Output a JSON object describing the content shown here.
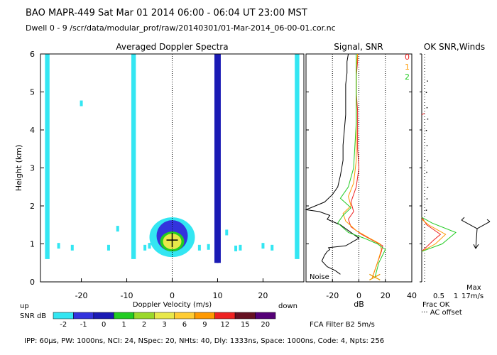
{
  "header": {
    "title": "BAO  MAPR-449  Sat Mar 01 2014 06:00 - 06:04 UT 23:00 MST",
    "dwell": "Dwell  0 -  9   /scr/data/modular_prof/raw/20140301/01-Mar-2014_06-00-01.cor.nc"
  },
  "footer": "IPP:  60µs,  PW: 1000ns,  NCI:  24,  NSpec: 20, NHts: 40,  Dly: 1333ns,  Space: 1000ns,  Code: 4,  Npts: 256",
  "colors": {
    "cyan": "#33e6f2",
    "blue": "#3333dd",
    "green": "#22cc22",
    "red": "#ee2222",
    "orange": "#ff9900",
    "yellow": "#e8e84a"
  },
  "chart_data": [
    {
      "type": "heatmap",
      "title": "Averaged Doppler Spectra",
      "xlabel": "Doppler Velocity (m/s)",
      "ylabel": "Height (km)",
      "xlim": [
        -29,
        29
      ],
      "ylim": [
        0,
        6
      ],
      "x_ticks": [
        -20,
        -10,
        0,
        10,
        20
      ],
      "y_ticks": [
        0,
        1,
        2,
        3,
        4,
        5,
        6
      ],
      "left_label": "up",
      "right_label": "down",
      "colorbar": {
        "label": "SNR dB",
        "levels": [
          "-2",
          "-1",
          "0",
          "1",
          "2",
          "3",
          "6",
          "9",
          "12",
          "15",
          "20"
        ],
        "colors": [
          "#33e6f2",
          "#3333dd",
          "#1a1ab4",
          "#22cc22",
          "#9ad82a",
          "#e8e84a",
          "#ffcc33",
          "#ff9900",
          "#ee2222",
          "#661122",
          "#550077"
        ]
      },
      "features": [
        {
          "kind": "band",
          "x": [
            -28,
            -27
          ],
          "y": [
            0.6,
            6
          ],
          "level": "-2"
        },
        {
          "kind": "band",
          "x": [
            -9,
            -8
          ],
          "y": [
            0.6,
            6
          ],
          "level": "-2"
        },
        {
          "kind": "band",
          "x": [
            9.3,
            10.7
          ],
          "y": [
            0.5,
            6
          ],
          "level": "0"
        },
        {
          "kind": "band",
          "x": [
            27,
            28
          ],
          "y": [
            0.6,
            6
          ],
          "level": "-2"
        },
        {
          "kind": "blob",
          "x": 0,
          "y": 1.1,
          "level": "3"
        }
      ]
    },
    {
      "type": "line",
      "title": "Signal, SNR",
      "xlabel": "dB",
      "xlim": [
        -40,
        40
      ],
      "ylim": [
        0,
        6
      ],
      "x_ticks": [
        -20,
        0,
        20,
        40
      ],
      "annotation": "Noise",
      "series": [
        {
          "color": "#000000",
          "x": [
            -14,
            -18,
            -24,
            -28,
            -26,
            -24,
            -22,
            -23,
            -10,
            -5,
            0,
            -6,
            -14,
            -24,
            -22,
            -30,
            -40,
            -26,
            -20,
            -16,
            -14,
            -12,
            -12,
            -11,
            -10,
            -10,
            -10,
            -9,
            -9,
            -8,
            -8
          ],
          "y": [
            0.2,
            0.3,
            0.4,
            0.55,
            0.7,
            0.8,
            0.85,
            0.9,
            0.95,
            1.05,
            1.15,
            1.3,
            1.5,
            1.65,
            1.75,
            1.85,
            1.9,
            2.1,
            2.3,
            2.5,
            2.8,
            3.2,
            3.6,
            4,
            4.4,
            4.8,
            5.2,
            5.5,
            5.8,
            6,
            6
          ]
        },
        {
          "color": "#ee2222",
          "x": [
            10,
            13,
            17,
            18,
            10,
            2,
            -6,
            -8,
            -4,
            -6,
            -2,
            0,
            -1,
            -1,
            -1,
            -2,
            -2,
            -1,
            -1
          ],
          "y": [
            0.1,
            0.4,
            0.8,
            0.95,
            1.1,
            1.25,
            1.45,
            1.65,
            1.85,
            2.1,
            2.5,
            3,
            3.5,
            4,
            4.5,
            5,
            5.4,
            5.8,
            6
          ]
        },
        {
          "color": "#ff9900",
          "x": [
            10,
            14,
            17,
            16,
            8,
            -2,
            -10,
            -12,
            -6,
            -8,
            -4,
            -2,
            -2,
            -2,
            -2,
            -2,
            -1
          ],
          "y": [
            0.1,
            0.5,
            0.85,
            1,
            1.15,
            1.35,
            1.6,
            1.8,
            2,
            2.25,
            2.6,
            3.2,
            3.8,
            4.4,
            5,
            5.6,
            6
          ]
        },
        {
          "color": "#22cc22",
          "x": [
            12,
            15,
            20,
            14,
            4,
            -8,
            -16,
            -12,
            -6,
            -14,
            -8,
            -4,
            -3,
            -2,
            -2,
            -2,
            -2
          ],
          "y": [
            0.1,
            0.5,
            0.85,
            1,
            1.15,
            1.3,
            1.55,
            1.75,
            1.95,
            2.2,
            2.5,
            3,
            3.6,
            4.2,
            4.8,
            5.4,
            6
          ]
        }
      ]
    },
    {
      "type": "line",
      "title": "OK  SNR,Winds",
      "legend": [
        "0",
        "1",
        "2"
      ],
      "xlim": [
        0,
        1
      ],
      "x_ticks": [
        "0.5",
        "1"
      ],
      "xlabel": "Frac OK",
      "note": "··· AC offset",
      "wind_max": "Max\n17m/s",
      "series": [
        {
          "color": "#ee2222",
          "x": [
            0,
            0.35,
            0.55,
            0.15,
            0
          ],
          "y": [
            0.8,
            1.1,
            1.25,
            1.5,
            1.7
          ]
        },
        {
          "color": "#ff9900",
          "x": [
            0,
            0.4,
            0.7,
            0.2,
            0
          ],
          "y": [
            0.8,
            1,
            1.25,
            1.5,
            1.65
          ]
        },
        {
          "color": "#22cc22",
          "x": [
            0,
            0.6,
            1,
            0.3,
            0
          ],
          "y": [
            0.8,
            1,
            1.3,
            1.55,
            1.7
          ]
        }
      ]
    }
  ],
  "labels": {
    "snr_label": "SNR dB",
    "filter": "FCA Filter B2  5m/s"
  }
}
